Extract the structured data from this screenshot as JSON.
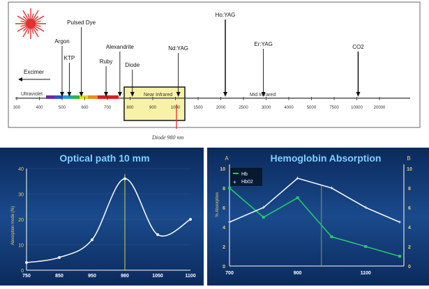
{
  "colors": {
    "panel_bg_top": "#123a78",
    "panel_bg_bottom": "#0a2450",
    "title_color": "#7fd0ff",
    "curve_white": "#f2f4f8",
    "hb_green": "#22c96a",
    "axis_label_yellow": "#e8d070",
    "laser_red": "#e03030",
    "callout_box": "#f5f0a0"
  },
  "spectrum": {
    "caption": "Diode 980 nm",
    "region_labels": {
      "ultraviolet": "Ultraviolet",
      "near_infrared": "Near Infrared",
      "mid_infrared": "Mid Infrared"
    },
    "excimer_label": "Excimer",
    "ticks": [
      "300",
      "400",
      "500",
      "600",
      "700",
      "800",
      "900",
      "1000",
      "1500",
      "2000",
      "2500",
      "3000",
      "4000",
      "5000",
      "7500",
      "10000",
      "20000"
    ],
    "lasers": [
      {
        "name": "Argon",
        "tick": "500"
      },
      {
        "name": "KTP",
        "tick": "532"
      },
      {
        "name": "Pulsed Dye",
        "tick": "585"
      },
      {
        "name": "Ruby",
        "tick": "694"
      },
      {
        "name": "Alexandrite",
        "tick": "755"
      },
      {
        "name": "Diode",
        "tick": "810"
      },
      {
        "name": "Nd:YAG",
        "tick": "1064"
      },
      {
        "name": "Ho:YAG",
        "tick": "2100"
      },
      {
        "name": "Er:YAG",
        "tick": "2940"
      },
      {
        "name": "CO2",
        "tick": "10600"
      }
    ]
  },
  "chart_data": [
    {
      "type": "line",
      "title": "Optical path 10 mm",
      "ylabel": "Absorption mode (%)",
      "x_ticks": [
        "750",
        "850",
        "950",
        "980",
        "1050",
        "1100"
      ],
      "y_ticks": [
        "0",
        "10",
        "20",
        "30",
        "40"
      ],
      "ylim": [
        0,
        40
      ],
      "marker_x": "980",
      "series": [
        {
          "values": [
            {
              "x": "750",
              "y": 3
            },
            {
              "x": "850",
              "y": 5
            },
            {
              "x": "950",
              "y": 12
            },
            {
              "x": "980",
              "y": 36
            },
            {
              "x": "1050",
              "y": 14
            },
            {
              "x": "1100",
              "y": 20
            }
          ]
        }
      ]
    },
    {
      "type": "line",
      "title": "Hemoglobin Absorption",
      "ylabel": "% Absorption",
      "axis_letter_left": "A",
      "axis_letter_right": "B",
      "x_ticks": [
        "700",
        "900",
        "1100"
      ],
      "y_ticks_left": [
        "0",
        "2",
        "4",
        "6",
        "8",
        "10"
      ],
      "y_ticks_right": [
        "0",
        "2",
        "4",
        "6",
        "8",
        "10"
      ],
      "ylim": [
        0,
        10
      ],
      "xlim": [
        700,
        1200
      ],
      "marker_x": 970,
      "series": [
        {
          "name": "Hb",
          "color": "#22c96a",
          "x": [
            700,
            800,
            900,
            1000,
            1100,
            1200
          ],
          "values": [
            8,
            5,
            7,
            3,
            2,
            1
          ]
        },
        {
          "name": "Hb02",
          "color": "#f2f4f8",
          "x": [
            700,
            800,
            900,
            1000,
            1100,
            1200
          ],
          "values": [
            4.5,
            6,
            9,
            8,
            6,
            4.5
          ]
        }
      ]
    }
  ]
}
